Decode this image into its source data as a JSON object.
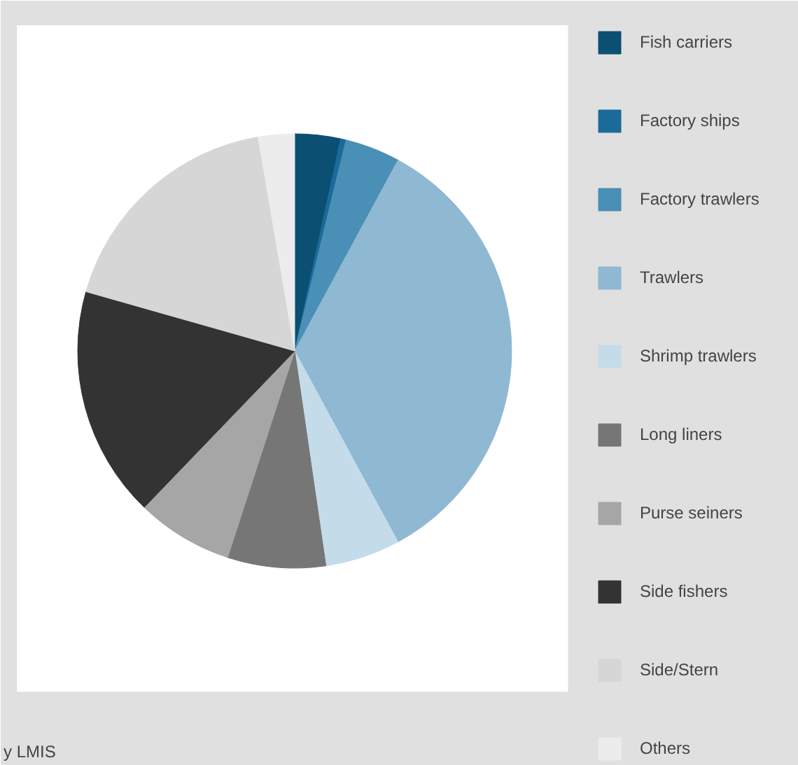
{
  "chart_data": {
    "type": "pie",
    "categories": [
      "Fish carriers",
      "Factory ships",
      "Factory trawlers",
      "Trawlers",
      "Shrimp trawlers",
      "Long liners",
      "Purse seiners",
      "Side fishers",
      "Side/Stern",
      "Others"
    ],
    "values": [
      3.4,
      0.4,
      4.1,
      34.2,
      5.6,
      7.3,
      7.2,
      17.2,
      17.9,
      2.7
    ],
    "colors": [
      "#0b4f73",
      "#1a6a9a",
      "#4a8fb5",
      "#8fb8d2",
      "#c4dcea",
      "#767676",
      "#a6a6a6",
      "#333333",
      "#d6d6d6",
      "#ececec"
    ],
    "legend": "right",
    "annotations": [
      "y LMIS"
    ]
  }
}
